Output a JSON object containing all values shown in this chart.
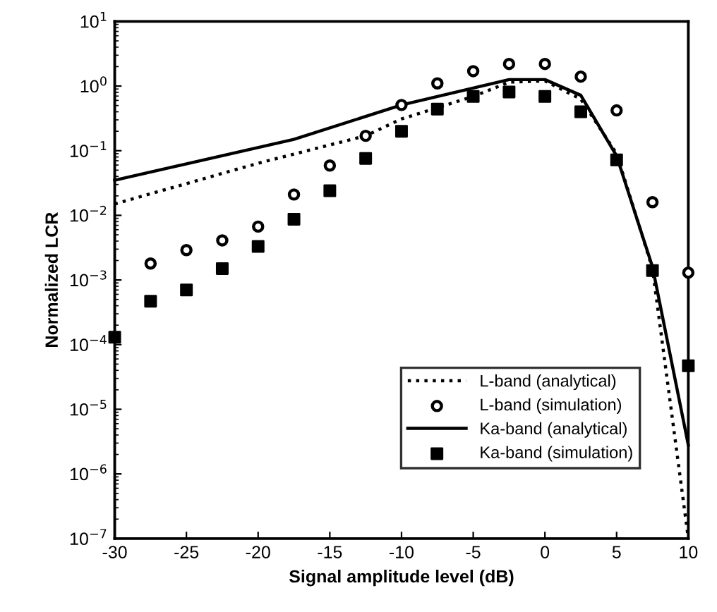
{
  "chart_data": {
    "type": "line",
    "xlabel": "Signal amplitude level (dB)",
    "ylabel": "Normalized LCR",
    "log": "y",
    "xlim": [
      -30,
      10
    ],
    "xticks": [
      -30,
      -25,
      -20,
      -15,
      -10,
      -5,
      0,
      5,
      10
    ],
    "ylim": [
      1e-07,
      10
    ],
    "yticks": [
      {
        "value": 1e-07,
        "label": "10$^{−7}$"
      },
      {
        "value": 1e-06,
        "label": "10$^{−6}$"
      },
      {
        "value": 1e-05,
        "label": "10$^{−5}$"
      },
      {
        "value": 0.0001,
        "label": "10$^{−4}$"
      },
      {
        "value": 0.001,
        "label": "10$^{−3}$"
      },
      {
        "value": 0.01,
        "label": "10$^{−2}$"
      },
      {
        "value": 0.1,
        "label": "10$^{−1}$"
      },
      {
        "value": 1,
        "label": "10$^{0}$"
      },
      {
        "value": 10,
        "label": "10$^{1}$"
      }
    ],
    "legend": "bottom right",
    "grid": false,
    "series": [
      {
        "name": "L-band (analytical)",
        "line_style": "dotted",
        "marker": "none",
        "color": "#000000",
        "x": [
          -30,
          -20,
          -12.5,
          -10,
          -5,
          -2.5,
          0,
          2.5,
          5,
          7.5,
          10
        ],
        "values": [
          0.015,
          0.064,
          0.17,
          0.31,
          0.69,
          1.15,
          1.2,
          0.63,
          0.09,
          0.0015,
          1e-07
        ]
      },
      {
        "name": "L-band (simulation)",
        "type": "scatter",
        "marker": "circle",
        "color": "#000000",
        "x": [
          -27.5,
          -25,
          -22.5,
          -20,
          -17.5,
          -15,
          -12.5,
          -10,
          -7.5,
          -5,
          -2.5,
          0,
          2.5,
          5,
          7.5,
          10
        ],
        "values": [
          0.0018,
          0.0029,
          0.0041,
          0.0067,
          0.021,
          0.059,
          0.17,
          0.51,
          1.1,
          1.7,
          2.2,
          2.2,
          1.4,
          0.42,
          0.016,
          0.0013
        ]
      },
      {
        "name": "Ka-band (analytical)",
        "line_style": "solid",
        "marker": "none",
        "color": "#000000",
        "x": [
          -30,
          -17.5,
          -10,
          -2.5,
          0,
          2.5,
          5,
          7.5,
          10
        ],
        "values": [
          0.035,
          0.15,
          0.51,
          1.26,
          1.26,
          0.72,
          0.083,
          0.0016,
          2.8e-06
        ]
      },
      {
        "name": "Ka-band (simulation)",
        "type": "scatter",
        "marker": "square",
        "color": "#000000",
        "x": [
          -30,
          -27.5,
          -25,
          -22.5,
          -20,
          -17.5,
          -15,
          -12.5,
          -10,
          -7.5,
          -5,
          -2.5,
          0,
          2.5,
          5,
          7.5,
          10
        ],
        "values": [
          0.00013,
          0.00047,
          0.0007,
          0.0015,
          0.0033,
          0.0087,
          0.024,
          0.076,
          0.2,
          0.44,
          0.69,
          0.81,
          0.69,
          0.4,
          0.072,
          0.0014,
          4.7e-05
        ]
      }
    ]
  }
}
